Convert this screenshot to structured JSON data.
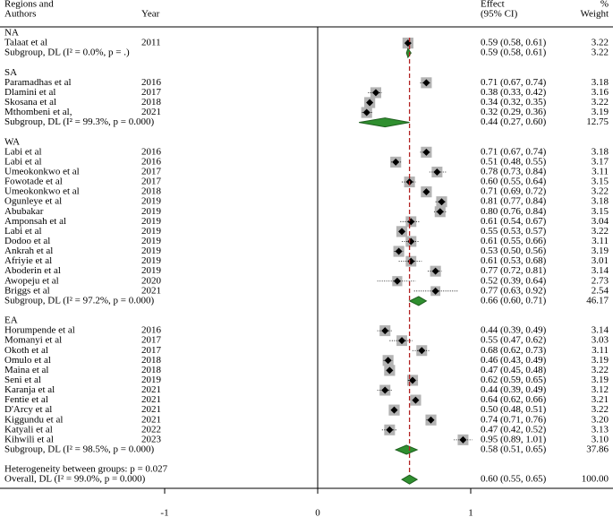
{
  "chart_data": {
    "type": "forest",
    "headers": {
      "region_line1": "Regions and",
      "region_line2": "Authors",
      "year": "Year",
      "effect_line1": "Effect",
      "effect_line2": "(95% CI)",
      "weight_line1": "%",
      "weight_line2": "Weight"
    },
    "xlim": [
      -1,
      1
    ],
    "xticks": [
      -1,
      0,
      1
    ],
    "groups": [
      {
        "name": "NA",
        "studies": [
          {
            "author": "Talaat et al",
            "year": 2011,
            "effect": 0.59,
            "ci_low": 0.58,
            "ci_high": 0.61,
            "ci_label": "0.59 (0.58, 0.61)",
            "weight": 3.22,
            "weight_label": "3.22"
          }
        ],
        "subgroup": {
          "label": "Subgroup, DL (I² = 0.0%, p = .)",
          "effect": 0.59,
          "ci_low": 0.58,
          "ci_high": 0.61,
          "ci_label": "0.59 (0.58, 0.61)",
          "weight": 3.22,
          "weight_label": "3.22"
        }
      },
      {
        "name": "SA",
        "studies": [
          {
            "author": "Paramadhas  et al",
            "year": 2016,
            "effect": 0.71,
            "ci_low": 0.67,
            "ci_high": 0.74,
            "ci_label": "0.71 (0.67, 0.74)",
            "weight": 3.18,
            "weight_label": "3.18"
          },
          {
            "author": "Dlamini  et al",
            "year": 2017,
            "effect": 0.38,
            "ci_low": 0.33,
            "ci_high": 0.42,
            "ci_label": "0.38 (0.33, 0.42)",
            "weight": 3.16,
            "weight_label": "3.16"
          },
          {
            "author": "Skosana et al",
            "year": 2018,
            "effect": 0.34,
            "ci_low": 0.32,
            "ci_high": 0.35,
            "ci_label": "0.34 (0.32, 0.35)",
            "weight": 3.22,
            "weight_label": "3.22"
          },
          {
            "author": "Mthombeni et al,",
            "year": 2021,
            "effect": 0.32,
            "ci_low": 0.29,
            "ci_high": 0.36,
            "ci_label": "0.32 (0.29, 0.36)",
            "weight": 3.19,
            "weight_label": "3.19"
          }
        ],
        "subgroup": {
          "label": "Subgroup, DL (I² = 99.3%, p = 0.000)",
          "effect": 0.44,
          "ci_low": 0.27,
          "ci_high": 0.6,
          "ci_label": "0.44 (0.27, 0.60)",
          "weight": 12.75,
          "weight_label": "12.75"
        }
      },
      {
        "name": "WA",
        "studies": [
          {
            "author": "Labi  et al",
            "year": 2016,
            "effect": 0.71,
            "ci_low": 0.67,
            "ci_high": 0.74,
            "ci_label": "0.71 (0.67, 0.74)",
            "weight": 3.18,
            "weight_label": "3.18"
          },
          {
            "author": "Labi et al",
            "year": 2016,
            "effect": 0.51,
            "ci_low": 0.48,
            "ci_high": 0.55,
            "ci_label": "0.51 (0.48, 0.55)",
            "weight": 3.17,
            "weight_label": "3.17"
          },
          {
            "author": "Umeokonkwo et al",
            "year": 2017,
            "effect": 0.78,
            "ci_low": 0.73,
            "ci_high": 0.84,
            "ci_label": "0.78 (0.73, 0.84)",
            "weight": 3.11,
            "weight_label": "3.11"
          },
          {
            "author": "Fowotade et al",
            "year": 2017,
            "effect": 0.6,
            "ci_low": 0.55,
            "ci_high": 0.64,
            "ci_label": "0.60 (0.55, 0.64)",
            "weight": 3.15,
            "weight_label": "3.15"
          },
          {
            "author": "Umeokonkwo et al",
            "year": 2018,
            "effect": 0.71,
            "ci_low": 0.69,
            "ci_high": 0.72,
            "ci_label": "0.71 (0.69, 0.72)",
            "weight": 3.22,
            "weight_label": "3.22"
          },
          {
            "author": "Ogunleye et al",
            "year": 2019,
            "effect": 0.81,
            "ci_low": 0.77,
            "ci_high": 0.84,
            "ci_label": "0.81 (0.77, 0.84)",
            "weight": 3.18,
            "weight_label": "3.18"
          },
          {
            "author": "Abubakar",
            "year": 2019,
            "effect": 0.8,
            "ci_low": 0.76,
            "ci_high": 0.84,
            "ci_label": "0.80 (0.76, 0.84)",
            "weight": 3.15,
            "weight_label": "3.15"
          },
          {
            "author": "Amponsah  et al",
            "year": 2019,
            "effect": 0.61,
            "ci_low": 0.54,
            "ci_high": 0.67,
            "ci_label": "0.61 (0.54, 0.67)",
            "weight": 3.04,
            "weight_label": "3.04"
          },
          {
            "author": "Labi et al",
            "year": 2019,
            "effect": 0.55,
            "ci_low": 0.53,
            "ci_high": 0.57,
            "ci_label": "0.55 (0.53, 0.57)",
            "weight": 3.22,
            "weight_label": "3.22"
          },
          {
            "author": "Dodoo et al",
            "year": 2019,
            "effect": 0.61,
            "ci_low": 0.55,
            "ci_high": 0.66,
            "ci_label": "0.61 (0.55, 0.66)",
            "weight": 3.11,
            "weight_label": "3.11"
          },
          {
            "author": "Ankrah et al",
            "year": 2019,
            "effect": 0.53,
            "ci_low": 0.5,
            "ci_high": 0.56,
            "ci_label": "0.53 (0.50, 0.56)",
            "weight": 3.19,
            "weight_label": "3.19"
          },
          {
            "author": "Afriyie et al",
            "year": 2019,
            "effect": 0.61,
            "ci_low": 0.53,
            "ci_high": 0.68,
            "ci_label": "0.61 (0.53, 0.68)",
            "weight": 3.01,
            "weight_label": "3.01"
          },
          {
            "author": "Aboderin et al",
            "year": 2019,
            "effect": 0.77,
            "ci_low": 0.72,
            "ci_high": 0.81,
            "ci_label": "0.77 (0.72, 0.81)",
            "weight": 3.14,
            "weight_label": "3.14"
          },
          {
            "author": "Awopeju et al",
            "year": 2020,
            "effect": 0.52,
            "ci_low": 0.39,
            "ci_high": 0.64,
            "ci_label": "0.52 (0.39, 0.64)",
            "weight": 2.73,
            "weight_label": "2.73"
          },
          {
            "author": "Briggs et al",
            "year": 2021,
            "effect": 0.77,
            "ci_low": 0.63,
            "ci_high": 0.92,
            "ci_label": "0.77 (0.63, 0.92)",
            "weight": 2.54,
            "weight_label": "2.54"
          }
        ],
        "subgroup": {
          "label": "Subgroup, DL (I² = 97.2%, p = 0.000)",
          "effect": 0.66,
          "ci_low": 0.6,
          "ci_high": 0.71,
          "ci_label": "0.66 (0.60, 0.71)",
          "weight": 46.17,
          "weight_label": "46.17"
        }
      },
      {
        "name": "EA",
        "studies": [
          {
            "author": "Horumpende et al",
            "year": 2016,
            "effect": 0.44,
            "ci_low": 0.39,
            "ci_high": 0.49,
            "ci_label": "0.44 (0.39, 0.49)",
            "weight": 3.14,
            "weight_label": "3.14"
          },
          {
            "author": "Momanyi et al",
            "year": 2017,
            "effect": 0.55,
            "ci_low": 0.47,
            "ci_high": 0.62,
            "ci_label": "0.55 (0.47, 0.62)",
            "weight": 3.03,
            "weight_label": "3.03"
          },
          {
            "author": "Okoth et al",
            "year": 2017,
            "effect": 0.68,
            "ci_low": 0.62,
            "ci_high": 0.73,
            "ci_label": "0.68 (0.62, 0.73)",
            "weight": 3.11,
            "weight_label": "3.11"
          },
          {
            "author": "Omulo et al",
            "year": 2018,
            "effect": 0.46,
            "ci_low": 0.43,
            "ci_high": 0.49,
            "ci_label": "0.46 (0.43, 0.49)",
            "weight": 3.19,
            "weight_label": "3.19"
          },
          {
            "author": "Maina et al",
            "year": 2018,
            "effect": 0.47,
            "ci_low": 0.45,
            "ci_high": 0.48,
            "ci_label": "0.47 (0.45, 0.48)",
            "weight": 3.22,
            "weight_label": "3.22"
          },
          {
            "author": "Seni et al",
            "year": 2019,
            "effect": 0.62,
            "ci_low": 0.59,
            "ci_high": 0.65,
            "ci_label": "0.62 (0.59, 0.65)",
            "weight": 3.19,
            "weight_label": "3.19"
          },
          {
            "author": "Karanja  et al",
            "year": 2021,
            "effect": 0.44,
            "ci_low": 0.39,
            "ci_high": 0.49,
            "ci_label": "0.44 (0.39, 0.49)",
            "weight": 3.12,
            "weight_label": "3.12"
          },
          {
            "author": "Fentie et al",
            "year": 2021,
            "effect": 0.64,
            "ci_low": 0.62,
            "ci_high": 0.66,
            "ci_label": "0.64 (0.62, 0.66)",
            "weight": 3.21,
            "weight_label": "3.21"
          },
          {
            "author": "D'Arcy et al",
            "year": 2021,
            "effect": 0.5,
            "ci_low": 0.48,
            "ci_high": 0.51,
            "ci_label": "0.50 (0.48, 0.51)",
            "weight": 3.22,
            "weight_label": "3.22"
          },
          {
            "author": "Kiggundu et al",
            "year": 2021,
            "effect": 0.74,
            "ci_low": 0.71,
            "ci_high": 0.76,
            "ci_label": "0.74 (0.71, 0.76)",
            "weight": 3.2,
            "weight_label": "3.20"
          },
          {
            "author": "Katyali et al",
            "year": 2022,
            "effect": 0.47,
            "ci_low": 0.42,
            "ci_high": 0.52,
            "ci_label": "0.47 (0.42, 0.52)",
            "weight": 3.13,
            "weight_label": "3.13"
          },
          {
            "author": "Kihwili et al",
            "year": 2023,
            "effect": 0.95,
            "ci_low": 0.89,
            "ci_high": 1.01,
            "ci_label": "0.95 (0.89, 1.01)",
            "weight": 3.1,
            "weight_label": "3.10"
          }
        ],
        "subgroup": {
          "label": "Subgroup, DL (I² = 98.5%, p = 0.000)",
          "effect": 0.58,
          "ci_low": 0.51,
          "ci_high": 0.65,
          "ci_label": "0.58 (0.51, 0.65)",
          "weight": 37.86,
          "weight_label": "37.86"
        }
      }
    ],
    "heterogeneity": "Heterogeneity between groups: p = 0.027",
    "overall": {
      "label": "Overall, DL (I² = 99.0%, p = 0.000)",
      "effect": 0.6,
      "ci_low": 0.55,
      "ci_high": 0.65,
      "ci_label": "0.60 (0.55, 0.65)",
      "weight": 100.0,
      "weight_label": "100.00"
    },
    "marker_color": "#b3b3b3",
    "diamond_color": "#2f8f2f",
    "reference_line_color": "#b22222"
  }
}
